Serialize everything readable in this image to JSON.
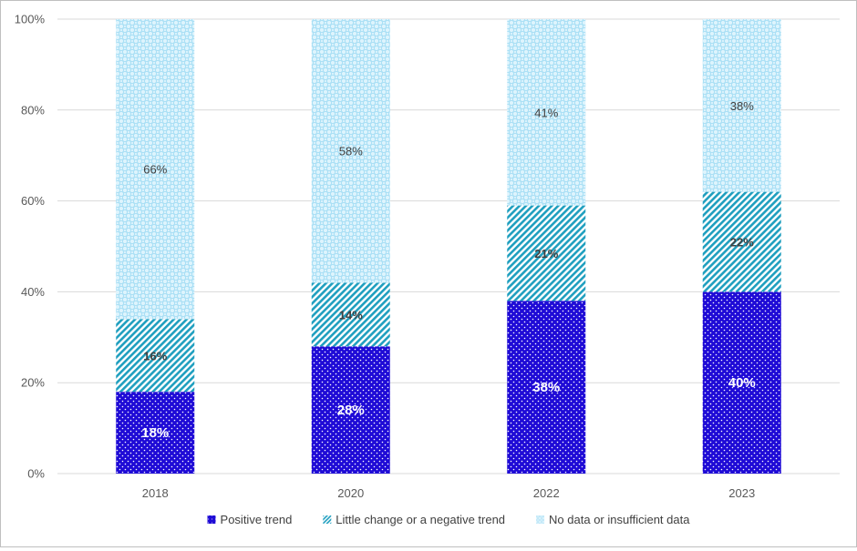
{
  "chart_data": {
    "type": "bar",
    "stacked": true,
    "categories": [
      "2018",
      "2020",
      "2022",
      "2023"
    ],
    "series": [
      {
        "name": "Positive trend",
        "values": [
          18,
          28,
          38,
          40
        ],
        "color": "#1f0bd6"
      },
      {
        "name": "Little change or a negative trend",
        "values": [
          16,
          14,
          21,
          22
        ],
        "color": "#1f9fbf"
      },
      {
        "name": "No data or insufficient data",
        "values": [
          66,
          58,
          41,
          38
        ],
        "color": "#cfeefb"
      }
    ],
    "data_labels": [
      [
        "18%",
        "28%",
        "38%",
        "40%"
      ],
      [
        "16%",
        "14%",
        "21%",
        "22%"
      ],
      [
        "66%",
        "58%",
        "41%",
        "38%"
      ]
    ],
    "ylim": [
      0,
      100
    ],
    "yticks": [
      "0%",
      "20%",
      "40%",
      "60%",
      "80%",
      "100%"
    ],
    "ytick_values": [
      0,
      20,
      40,
      60,
      80,
      100
    ],
    "grid": true,
    "legend": "bottom",
    "title": "",
    "xlabel": "",
    "ylabel": ""
  }
}
